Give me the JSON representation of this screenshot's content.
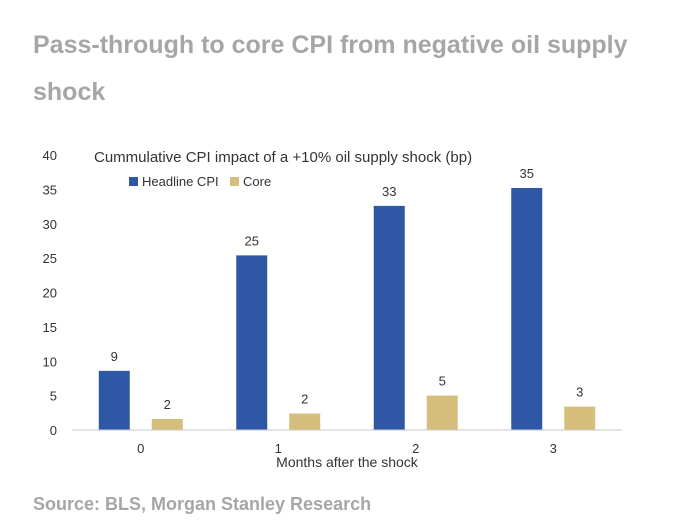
{
  "page": {
    "title": "Pass-through to core CPI from negative oil supply shock",
    "source": "Source: BLS, Morgan Stanley Research"
  },
  "chart_data": {
    "type": "bar",
    "title": "Cummulative CPI impact of a +10% oil supply shock (bp)",
    "xlabel": "Months after the shock",
    "ylabel": "",
    "categories": [
      "0",
      "1",
      "2",
      "3"
    ],
    "series": [
      {
        "name": "Headline CPI",
        "values": [
          8.6,
          25.4,
          32.6,
          35.2
        ],
        "labels": [
          "9",
          "25",
          "33",
          "35"
        ],
        "color": "#2e58a6"
      },
      {
        "name": "Core",
        "values": [
          1.6,
          2.4,
          5.0,
          3.4
        ],
        "labels": [
          "2",
          "2",
          "5",
          "3"
        ],
        "color": "#d6bf7d"
      }
    ],
    "ylim": [
      0,
      40
    ],
    "yticks": [
      "0",
      "5",
      "10",
      "15",
      "20",
      "25",
      "30",
      "35",
      "40"
    ],
    "grid": false,
    "legend_position": "top-left"
  }
}
